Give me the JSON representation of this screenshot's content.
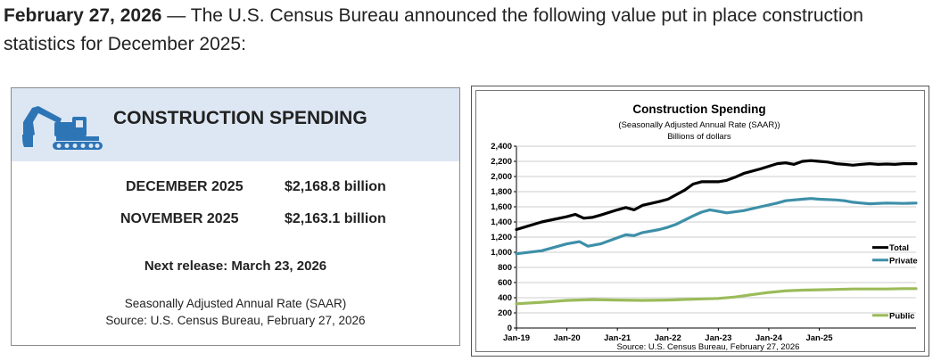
{
  "intro": {
    "date": "February  27, 2026",
    "text": " — The U.S. Census Bureau announced the following value put in place construction statistics for December 2025:"
  },
  "card": {
    "title": "CONSTRUCTION SPENDING",
    "rows": [
      {
        "label": "DECEMBER 2025",
        "value": "$2,168.8 billion"
      },
      {
        "label": "NOVEMBER 2025",
        "value": "$2,163.1 billion"
      }
    ],
    "next_release": "Next release: March 23, 2026",
    "note_line1": "Seasonally Adjusted Annual Rate (SAAR)",
    "note_line2": "Source: U.S. Census Bureau, February 27, 2026",
    "colors": {
      "header_bg": "#dde7f3",
      "icon": "#2e75b6"
    }
  },
  "chart_data": {
    "type": "line",
    "title": "Construction Spending",
    "subtitle": "(Seasonally Adjusted Annual Rate (SAAR))",
    "units": "Billions of dollars",
    "source": "Source: U.S. Census Bureau, February 27, 2026",
    "ylim": [
      0,
      2400
    ],
    "yticks": [
      0,
      200,
      400,
      600,
      800,
      1000,
      1200,
      1400,
      1600,
      1800,
      2000,
      2200,
      2400
    ],
    "ytick_labels": [
      "0",
      "200",
      "400",
      "600",
      "800",
      "1,000",
      "1,200",
      "1,400",
      "1,600",
      "1,800",
      "2,000",
      "2,200",
      "2,400"
    ],
    "xticks": [
      "Jan-19",
      "Jan-20",
      "Jan-21",
      "Jan-22",
      "Jan-23",
      "Jan-24",
      "Jan-25"
    ],
    "x_start": "Jan-2019",
    "x_end": "Dec-2025",
    "series": [
      {
        "name": "Total",
        "color": "#000000",
        "points": [
          [
            0,
            1300
          ],
          [
            6,
            1400
          ],
          [
            12,
            1470
          ],
          [
            14,
            1500
          ],
          [
            16,
            1450
          ],
          [
            18,
            1460
          ],
          [
            20,
            1490
          ],
          [
            24,
            1560
          ],
          [
            26,
            1590
          ],
          [
            28,
            1560
          ],
          [
            30,
            1620
          ],
          [
            34,
            1670
          ],
          [
            36,
            1700
          ],
          [
            40,
            1820
          ],
          [
            42,
            1900
          ],
          [
            44,
            1930
          ],
          [
            48,
            1930
          ],
          [
            50,
            1950
          ],
          [
            52,
            1990
          ],
          [
            54,
            2040
          ],
          [
            58,
            2100
          ],
          [
            62,
            2170
          ],
          [
            64,
            2180
          ],
          [
            66,
            2160
          ],
          [
            68,
            2200
          ],
          [
            70,
            2210
          ],
          [
            72,
            2200
          ],
          [
            74,
            2190
          ],
          [
            76,
            2170
          ],
          [
            78,
            2160
          ],
          [
            80,
            2150
          ],
          [
            82,
            2160
          ],
          [
            84,
            2170
          ],
          [
            86,
            2160
          ],
          [
            88,
            2165
          ],
          [
            90,
            2160
          ],
          [
            92,
            2170
          ],
          [
            95,
            2169
          ]
        ]
      },
      {
        "name": "Private",
        "color": "#3d8fa8",
        "points": [
          [
            0,
            980
          ],
          [
            6,
            1020
          ],
          [
            12,
            1110
          ],
          [
            15,
            1140
          ],
          [
            17,
            1080
          ],
          [
            20,
            1110
          ],
          [
            24,
            1190
          ],
          [
            26,
            1230
          ],
          [
            28,
            1220
          ],
          [
            30,
            1260
          ],
          [
            34,
            1300
          ],
          [
            36,
            1330
          ],
          [
            38,
            1370
          ],
          [
            42,
            1480
          ],
          [
            44,
            1530
          ],
          [
            46,
            1560
          ],
          [
            48,
            1540
          ],
          [
            50,
            1520
          ],
          [
            54,
            1550
          ],
          [
            58,
            1600
          ],
          [
            62,
            1650
          ],
          [
            64,
            1680
          ],
          [
            66,
            1690
          ],
          [
            68,
            1700
          ],
          [
            70,
            1710
          ],
          [
            72,
            1700
          ],
          [
            76,
            1690
          ],
          [
            78,
            1680
          ],
          [
            80,
            1660
          ],
          [
            82,
            1650
          ],
          [
            84,
            1640
          ],
          [
            88,
            1650
          ],
          [
            92,
            1645
          ],
          [
            95,
            1650
          ]
        ]
      },
      {
        "name": "Public",
        "color": "#9bbb59",
        "points": [
          [
            0,
            320
          ],
          [
            6,
            340
          ],
          [
            12,
            365
          ],
          [
            18,
            375
          ],
          [
            24,
            370
          ],
          [
            30,
            365
          ],
          [
            36,
            370
          ],
          [
            42,
            380
          ],
          [
            48,
            390
          ],
          [
            52,
            410
          ],
          [
            56,
            440
          ],
          [
            60,
            470
          ],
          [
            64,
            490
          ],
          [
            68,
            500
          ],
          [
            72,
            505
          ],
          [
            76,
            510
          ],
          [
            80,
            515
          ],
          [
            84,
            515
          ],
          [
            88,
            515
          ],
          [
            92,
            520
          ],
          [
            95,
            520
          ]
        ]
      }
    ]
  }
}
